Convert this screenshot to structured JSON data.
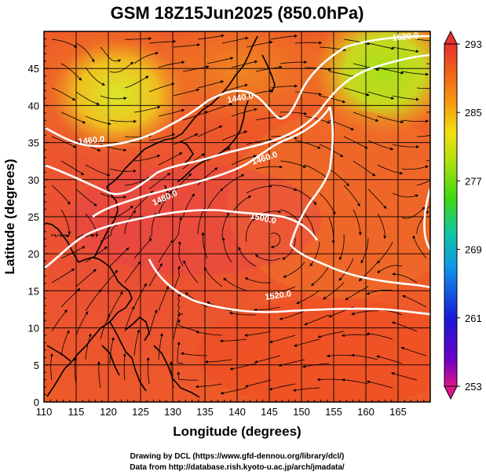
{
  "title": "GSM 18Z15Jun2025 (850.0hPa)",
  "xaxis": {
    "label": "Longitude (degrees)",
    "range": [
      110,
      170
    ],
    "ticks": [
      "110",
      "115",
      "120",
      "125",
      "130",
      "135",
      "140",
      "145",
      "150",
      "155",
      "160",
      "165"
    ]
  },
  "yaxis": {
    "label": "Latitude  (degrees)",
    "range": [
      0,
      50
    ],
    "ticks": [
      "0",
      "5",
      "10",
      "15",
      "20",
      "25",
      "30",
      "35",
      "40",
      "45"
    ]
  },
  "colorbar": {
    "range": [
      253,
      293
    ],
    "ticks": [
      "293",
      "285",
      "277",
      "269",
      "261",
      "253"
    ],
    "colors": [
      "#e0168c",
      "#6a00c8",
      "#1a1ad8",
      "#1098e8",
      "#10c8a0",
      "#40d810",
      "#a8e010",
      "#f0e010",
      "#f8a010",
      "#f06018",
      "#e83030"
    ]
  },
  "contours": [
    {
      "label": "1440.0"
    },
    {
      "label": "1460.0"
    },
    {
      "label": "1480.0"
    },
    {
      "label": "1500.0"
    },
    {
      "label": "1520.0"
    }
  ],
  "credits": {
    "line1": "Drawing by DCL (https://www.gfd-dennou.org/library/dcl/)",
    "line2": "Data from http://database.rish.kyoto-u.ac.jp/arch/jmadata/"
  }
}
